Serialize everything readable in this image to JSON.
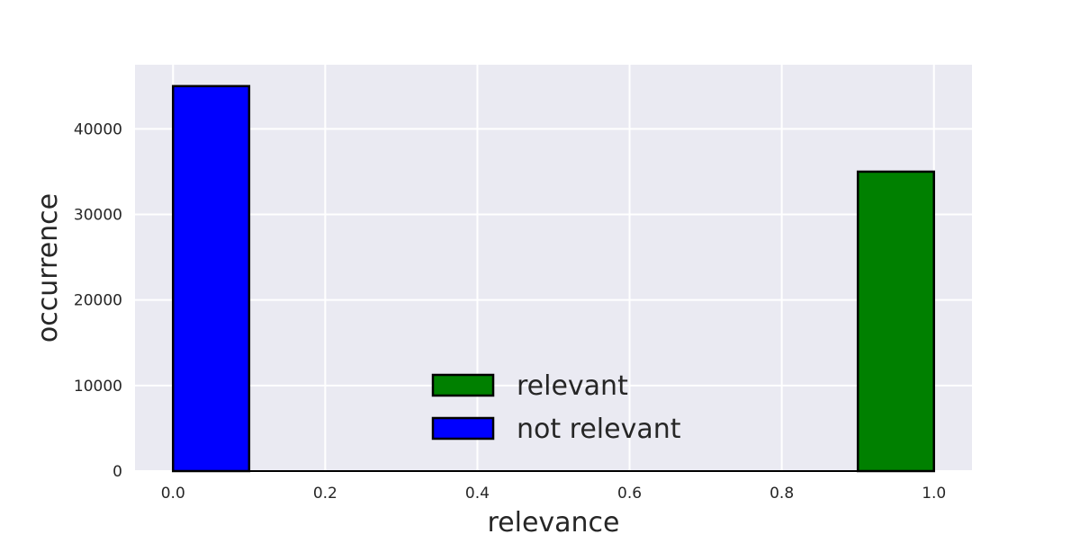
{
  "chart_data": {
    "type": "bar",
    "title": "",
    "xlabel": "relevance",
    "ylabel": "occurrence",
    "xlim": [
      -0.05,
      1.05
    ],
    "ylim": [
      0,
      47500
    ],
    "xticks": [
      0.0,
      0.2,
      0.4,
      0.6,
      0.8,
      1.0
    ],
    "xtick_labels": [
      "0.0",
      "0.2",
      "0.4",
      "0.6",
      "0.8",
      "1.0"
    ],
    "yticks": [
      0,
      10000,
      20000,
      30000,
      40000
    ],
    "ytick_labels": [
      "0",
      "10000",
      "20000",
      "30000",
      "40000"
    ],
    "grid": true,
    "legend_position": "lower-center",
    "series": [
      {
        "name": "relevant",
        "color": "#008000",
        "bins": [
          {
            "x0": 0.9,
            "x1": 1.0,
            "value": 35000
          }
        ]
      },
      {
        "name": "not relevant",
        "color": "#0000ff",
        "bins": [
          {
            "x0": 0.0,
            "x1": 0.1,
            "value": 45000
          }
        ]
      }
    ],
    "plot_background": "#eaeaf2",
    "bar_edge_color": "#000000"
  }
}
